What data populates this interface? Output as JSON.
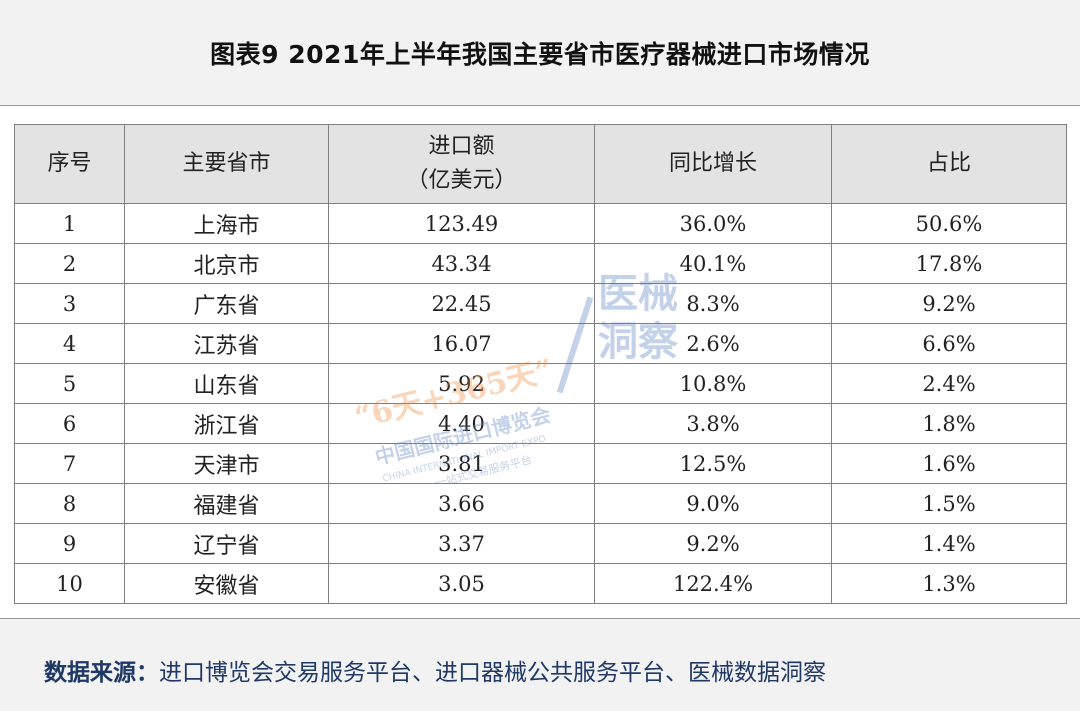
{
  "title": "图表9  2021年上半年我国主要省市医疗器械进口市场情况",
  "table": {
    "headers": {
      "index": "序号",
      "province": "主要省市",
      "amount_line1": "进口额",
      "amount_line2": "（亿美元）",
      "growth": "同比增长",
      "share": "占比"
    },
    "rows": [
      {
        "index": "1",
        "province": "上海市",
        "amount": "123.49",
        "growth": "36.0%",
        "share": "50.6%"
      },
      {
        "index": "2",
        "province": "北京市",
        "amount": "43.34",
        "growth": "40.1%",
        "share": "17.8%"
      },
      {
        "index": "3",
        "province": "广东省",
        "amount": "22.45",
        "growth": "8.3%",
        "share": "9.2%"
      },
      {
        "index": "4",
        "province": "江苏省",
        "amount": "16.07",
        "growth": "2.6%",
        "share": "6.6%"
      },
      {
        "index": "5",
        "province": "山东省",
        "amount": "5.92",
        "growth": "10.8%",
        "share": "2.4%"
      },
      {
        "index": "6",
        "province": "浙江省",
        "amount": "4.40",
        "growth": "3.8%",
        "share": "1.8%"
      },
      {
        "index": "7",
        "province": "天津市",
        "amount": "3.81",
        "growth": "12.5%",
        "share": "1.6%"
      },
      {
        "index": "8",
        "province": "福建省",
        "amount": "3.66",
        "growth": "9.0%",
        "share": "1.5%"
      },
      {
        "index": "9",
        "province": "辽宁省",
        "amount": "3.37",
        "growth": "9.2%",
        "share": "1.4%"
      },
      {
        "index": "10",
        "province": "安徽省",
        "amount": "3.05",
        "growth": "122.4%",
        "share": "1.3%"
      }
    ]
  },
  "watermark": {
    "logo_days": "“6天+365天”",
    "cn_name": "中国国际进口博览会",
    "en_name": "CHINA INTERNATIONAL IMPORT EXPO",
    "platform": "一站式交易服务平台",
    "brand_line1": "医械",
    "brand_line2": "洞察"
  },
  "source": {
    "label": "数据来源：",
    "text": "进口博览会交易服务平台、进口器械公共服务平台、医械数据洞察"
  },
  "colors": {
    "header_bg": "#e3e3e3",
    "source_text": "#1f3864",
    "watermark_blue": "#5a7fc1",
    "watermark_orange": "#f08a3c"
  }
}
